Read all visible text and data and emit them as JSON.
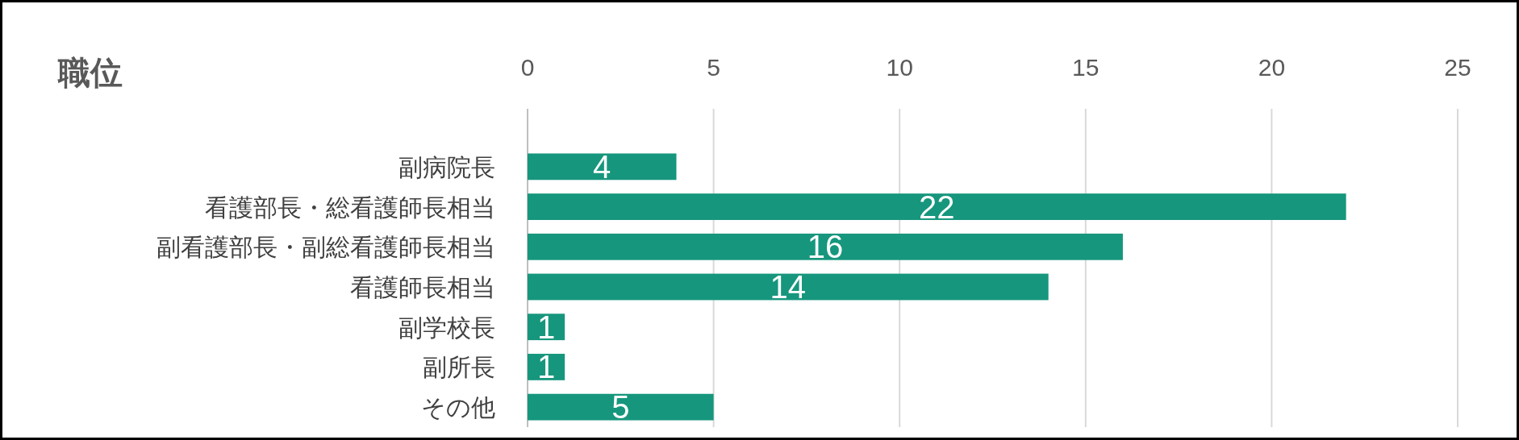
{
  "chart_data": {
    "type": "bar",
    "orientation": "horizontal",
    "title": "職位",
    "categories": [
      "副病院長",
      "看護部長・総看護師長相当",
      "副看護部長・副総看護師長相当",
      "看護師長相当",
      "副学校長",
      "副所長",
      "その他"
    ],
    "values": [
      4,
      22,
      16,
      14,
      1,
      1,
      5
    ],
    "color": "#16967d",
    "xlim": [
      0,
      25
    ],
    "xticks": [
      0,
      5,
      10,
      15,
      20,
      25
    ],
    "grid": "x",
    "data_labels": true
  }
}
